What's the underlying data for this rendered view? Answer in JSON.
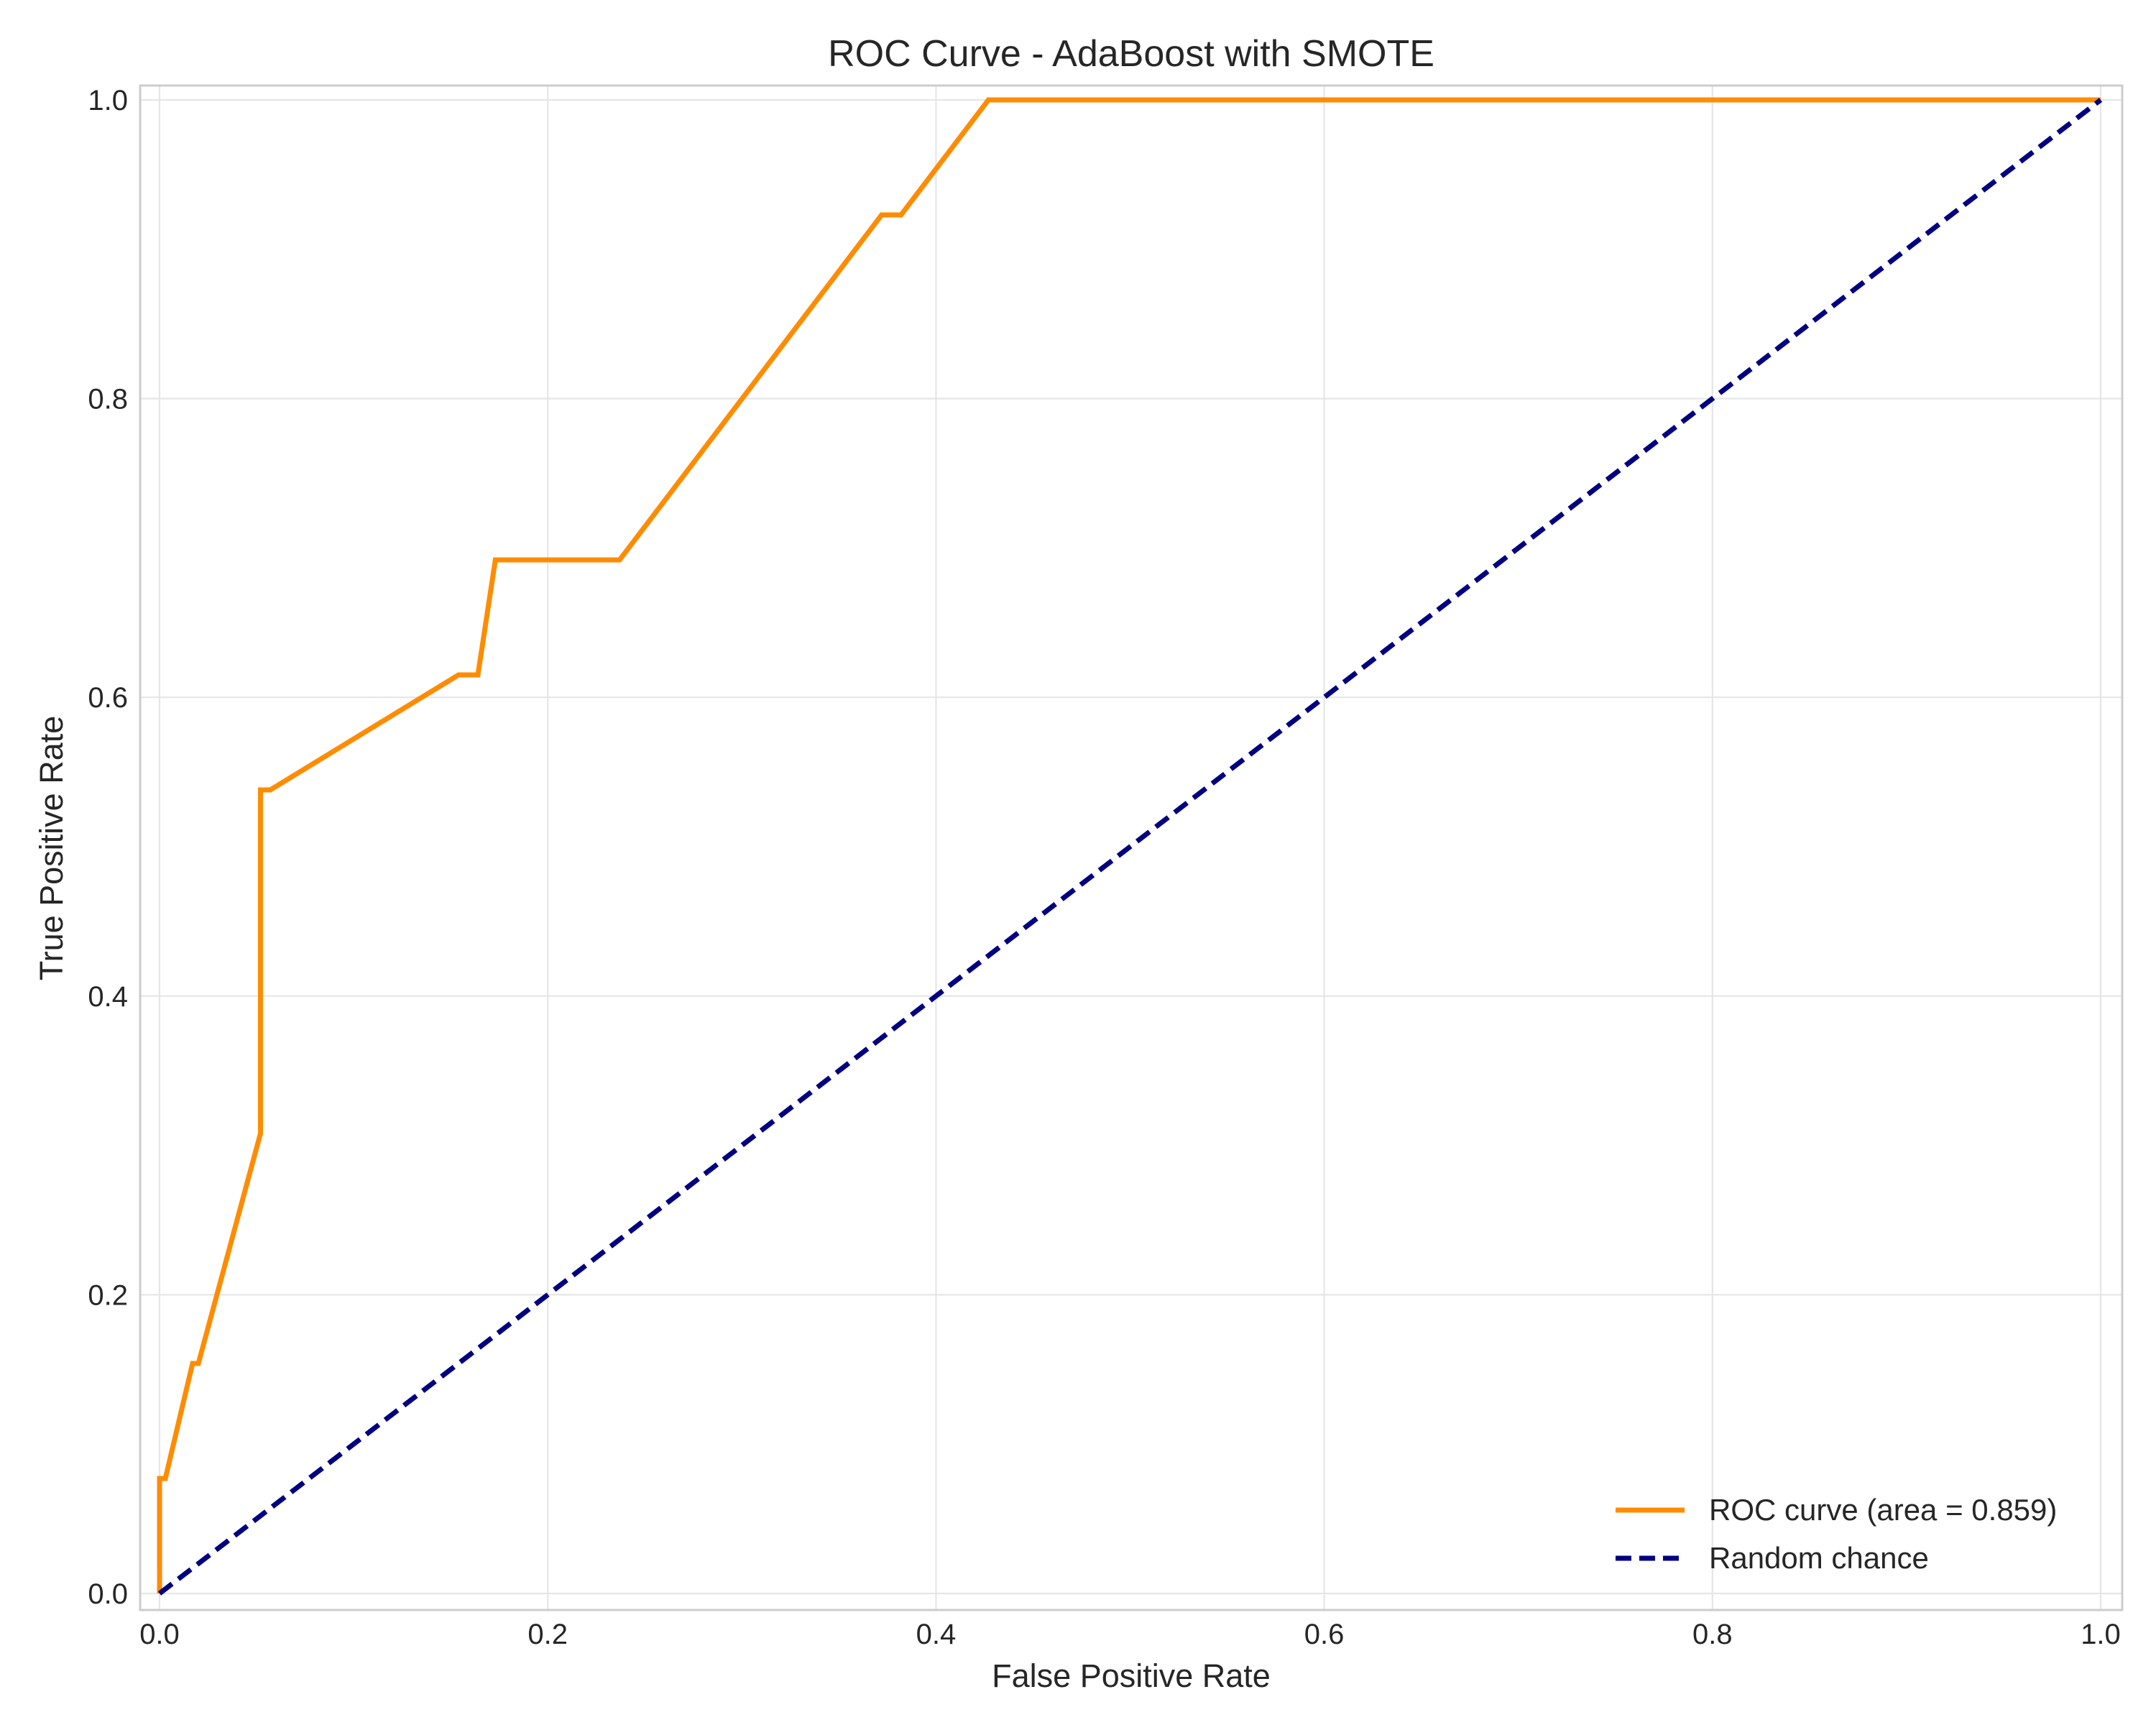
{
  "chart_data": {
    "type": "line",
    "title": "ROC Curve - AdaBoost with SMOTE",
    "xlabel": "False Positive Rate",
    "ylabel": "True Positive Rate",
    "xlim": [
      0.0,
      1.0
    ],
    "ylim": [
      0.0,
      1.0
    ],
    "xticks": [
      "0.0",
      "0.2",
      "0.4",
      "0.6",
      "0.8",
      "1.0"
    ],
    "yticks": [
      "0.0",
      "0.2",
      "0.4",
      "0.6",
      "0.8",
      "1.0"
    ],
    "grid": true,
    "legend_position": "lower-right",
    "series": [
      {
        "name": "ROC curve (area = 0.859)",
        "color": "#ff8c00",
        "style": "solid",
        "x": [
          0.0,
          0.0,
          0.003,
          0.017,
          0.02,
          0.052,
          0.052,
          0.057,
          0.154,
          0.164,
          0.173,
          0.237,
          0.372,
          0.382,
          0.427,
          1.0
        ],
        "y": [
          0.0,
          0.077,
          0.077,
          0.154,
          0.154,
          0.308,
          0.538,
          0.538,
          0.615,
          0.615,
          0.692,
          0.692,
          0.923,
          0.923,
          1.0,
          1.0
        ]
      },
      {
        "name": "Random chance",
        "color": "#000080",
        "style": "dashed",
        "x": [
          0.0,
          1.0
        ],
        "y": [
          0.0,
          1.0
        ]
      }
    ]
  }
}
